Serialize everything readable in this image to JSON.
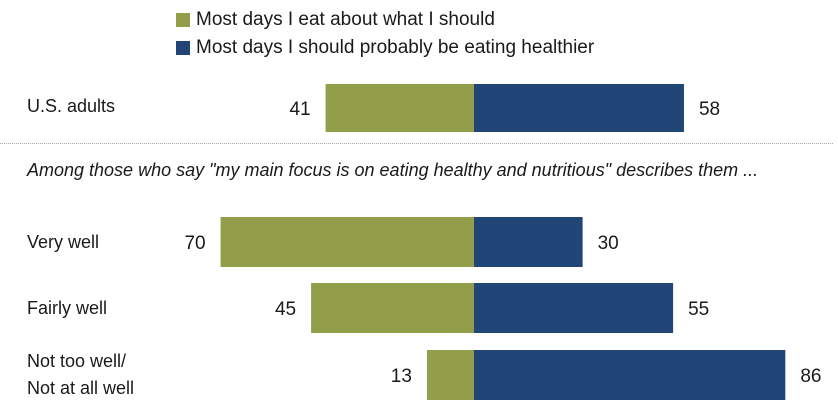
{
  "chart_data": {
    "type": "bar",
    "orientation": "horizontal-diverging",
    "categories": [
      "U.S. adults",
      "Very well",
      "Fairly well",
      "Not too well/\nNot at all well"
    ],
    "series": [
      {
        "name": "Most days I eat about what I should",
        "values": [
          41,
          70,
          45,
          13
        ],
        "color": "#939e4a"
      },
      {
        "name": "Most days I should probably be eating healthier",
        "values": [
          58,
          30,
          55,
          86
        ],
        "color": "#204576"
      }
    ],
    "legend_position": "top",
    "grid": false
  },
  "note": "Among those who say \"my main focus is on eating healthy and nutritious\" describes them ..."
}
